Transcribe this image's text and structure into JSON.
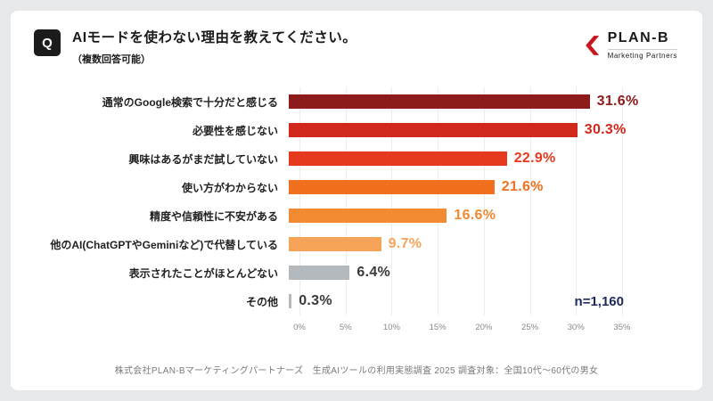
{
  "header": {
    "q_badge": "Q",
    "title": "AIモードを使わない理由を教えてください。",
    "subtitle": "（複数回答可能）"
  },
  "brand": {
    "name": "PLAN-B",
    "tagline": "Marketing Partners",
    "accent_color": "#C8161D"
  },
  "chart_data": {
    "type": "bar",
    "orientation": "horizontal",
    "title": "AIモードを使わない理由を教えてください。（複数回答可能）",
    "categories": [
      "通常のGoogle検索で十分だと感じる",
      "必要性を感じない",
      "興味はあるがまだ試していない",
      "使い方がわからない",
      "精度や信頼性に不安がある",
      "他のAI(ChatGPTやGeminiなど)で代替している",
      "表示されたことがほとんどない",
      "その他"
    ],
    "values": [
      31.6,
      30.3,
      22.9,
      21.6,
      16.6,
      9.7,
      6.4,
      0.3
    ],
    "value_labels": [
      "31.6%",
      "30.3%",
      "22.9%",
      "21.6%",
      "16.6%",
      "9.7%",
      "6.4%",
      "0.3%"
    ],
    "bar_colors": [
      "#8E1B1C",
      "#D2281B",
      "#E63A1E",
      "#F0701E",
      "#F18A30",
      "#F5A458",
      "#B4B9BD",
      "#B4B9BD"
    ],
    "value_colors": [
      "#8E1B1C",
      "#D2281B",
      "#E63A1E",
      "#F0701E",
      "#F18A30",
      "#F5A458",
      "#3A3A3A",
      "#3A3A3A"
    ],
    "xlim": [
      0,
      35
    ],
    "x_ticks": [
      "0%",
      "5%",
      "10%",
      "15%",
      "20%",
      "25%",
      "30%",
      "35%"
    ],
    "grid": true,
    "legend": "none",
    "sample_label": "n=1,160",
    "sample_color": "#1E2B5C"
  },
  "footer": {
    "credit": "株式会社PLAN-Bマーケティングパートナーズ　生成AIツールの利用実態調査 2025 調査対象：全国10代～60代の男女"
  }
}
